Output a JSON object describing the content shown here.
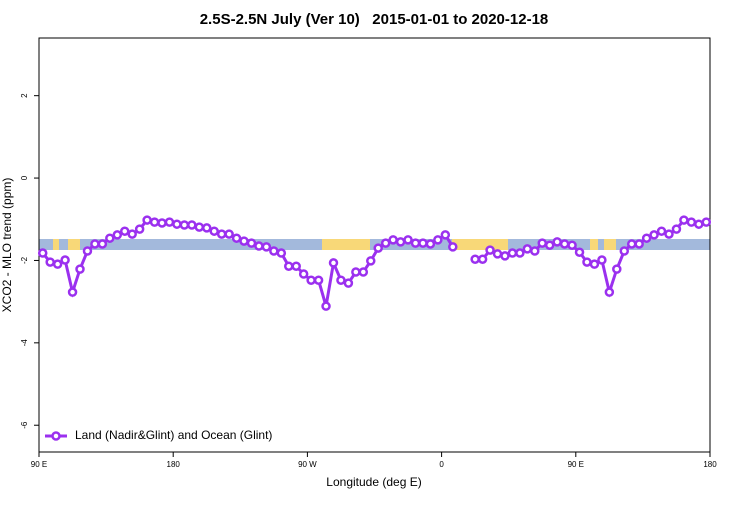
{
  "chart_data": {
    "type": "line",
    "title": "2.5S-2.5N July (Ver 10)   2015-01-01 to 2020-12-18",
    "x_label": "Longitude (deg E)",
    "y_label": "XCO2 - MLO trend (ppm)",
    "x": [
      92.5,
      97.5,
      102.5,
      107.5,
      112.5,
      117.5,
      122.5,
      127.5,
      132.5,
      137.5,
      142.5,
      147.5,
      152.5,
      157.5,
      162.5,
      167.5,
      172.5,
      177.5,
      182.5,
      187.5,
      192.5,
      197.5,
      202.5,
      207.5,
      212.5,
      217.5,
      222.5,
      227.5,
      232.5,
      237.5,
      242.5,
      247.5,
      252.5,
      257.5,
      262.5,
      267.5,
      272.5,
      277.5,
      282.5,
      287.5,
      292.5,
      297.5,
      302.5,
      307.5,
      312.5,
      317.5,
      322.5,
      327.5,
      332.5,
      337.5,
      342.5,
      347.5,
      352.5,
      357.5,
      362.5,
      367.5,
      372.5,
      377.5,
      382.5,
      387.5,
      392.5,
      397.5,
      402.5,
      407.5,
      412.5,
      417.5,
      422.5,
      427.5,
      432.5,
      437.5,
      442.5,
      447.5,
      452.5,
      457.5,
      462.5,
      467.5,
      472.5,
      477.5,
      482.5,
      487.5,
      492.5,
      497.5,
      502.5,
      507.5,
      512.5,
      517.5,
      522.5,
      527.5,
      532.5,
      537.5
    ],
    "series": [
      {
        "name": "Land (Nadir&Glint) and Ocean (Glint)",
        "color": "#9b30ef",
        "values": [
          -1.82,
          -2.04,
          -2.09,
          -1.99,
          -2.77,
          -2.21,
          -1.77,
          -1.6,
          -1.6,
          -1.46,
          -1.38,
          -1.29,
          -1.36,
          -1.24,
          -1.02,
          -1.07,
          -1.09,
          -1.07,
          -1.12,
          -1.14,
          -1.14,
          -1.19,
          -1.21,
          -1.29,
          -1.36,
          -1.36,
          -1.46,
          -1.53,
          -1.58,
          -1.65,
          -1.67,
          -1.77,
          -1.82,
          -2.14,
          -2.14,
          -2.33,
          -2.48,
          -2.48,
          -3.11,
          -2.06,
          -2.48,
          -2.55,
          -2.28,
          -2.28,
          -2.01,
          -1.7,
          -1.58,
          -1.5,
          -1.55,
          -1.5,
          -1.58,
          -1.58,
          -1.6,
          -1.5,
          -1.38,
          -1.67,
          null,
          null,
          -1.97,
          -1.97,
          -1.75,
          -1.84,
          -1.89,
          -1.82,
          -1.82,
          -1.72,
          -1.77,
          -1.58,
          -1.63,
          -1.55,
          -1.6,
          -1.63,
          -1.8,
          -2.04,
          -2.09,
          -1.99,
          -2.77,
          -2.21,
          -1.77,
          -1.6,
          -1.6,
          -1.46,
          -1.38,
          -1.29,
          -1.36,
          -1.24,
          -1.02,
          -1.07,
          -1.12,
          -1.07
        ]
      }
    ],
    "xlim": [
      90,
      540
    ],
    "xticks": [
      {
        "value": 90,
        "label": "90 E"
      },
      180,
      {
        "value": 270,
        "label": "90 W"
      },
      {
        "value": 360,
        "label": "0"
      },
      {
        "value": 450,
        "label": "90 E"
      },
      {
        "value": 540,
        "label": "180"
      }
    ],
    "ylim": [
      -6.65,
      3.4
    ],
    "yticks": [
      2,
      0,
      -2,
      -4,
      -6
    ],
    "legend": "bottom-left"
  }
}
